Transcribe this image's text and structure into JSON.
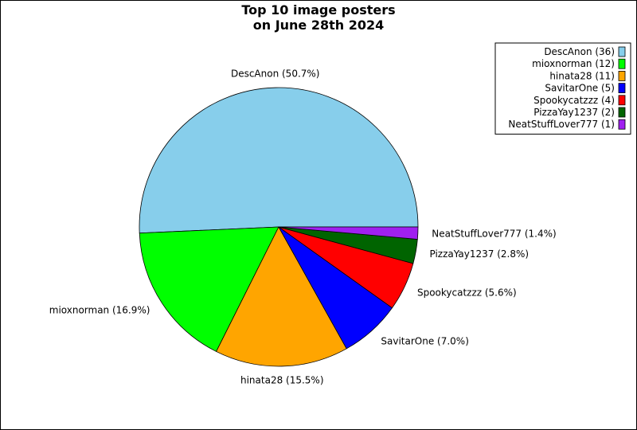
{
  "chart_data": {
    "type": "pie",
    "title": "Top 10 image posters\non June 28th 2024",
    "slices": [
      {
        "label": "DescAnon",
        "value": 36,
        "percent_label": "DescAnon (50.7%)",
        "legend_label": "DescAnon (36)",
        "color": "#87ceeb"
      },
      {
        "label": "mioxnorman",
        "value": 12,
        "percent_label": "mioxnorman (16.9%)",
        "legend_label": "mioxnorman (12)",
        "color": "#00ff00"
      },
      {
        "label": "hinata28",
        "value": 11,
        "percent_label": "hinata28 (15.5%)",
        "legend_label": "hinata28 (11)",
        "color": "#ffa500"
      },
      {
        "label": "SavitarOne",
        "value": 5,
        "percent_label": "SavitarOne (7.0%)",
        "legend_label": "SavitarOne (5)",
        "color": "#0000ff"
      },
      {
        "label": "Spookycatzzz",
        "value": 4,
        "percent_label": "Spookycatzzz (5.6%)",
        "legend_label": "Spookycatzzz (4)",
        "color": "#ff0000"
      },
      {
        "label": "PizzaYay1237",
        "value": 2,
        "percent_label": "PizzaYay1237 (2.8%)",
        "legend_label": "PizzaYay1237 (2)",
        "color": "#006400"
      },
      {
        "label": "NeatStuffLover777",
        "value": 1,
        "percent_label": "NeatStuffLover777 (1.4%)",
        "legend_label": "NeatStuffLover777 (1)",
        "color": "#a020f0"
      }
    ],
    "legend_position": "top-right"
  }
}
